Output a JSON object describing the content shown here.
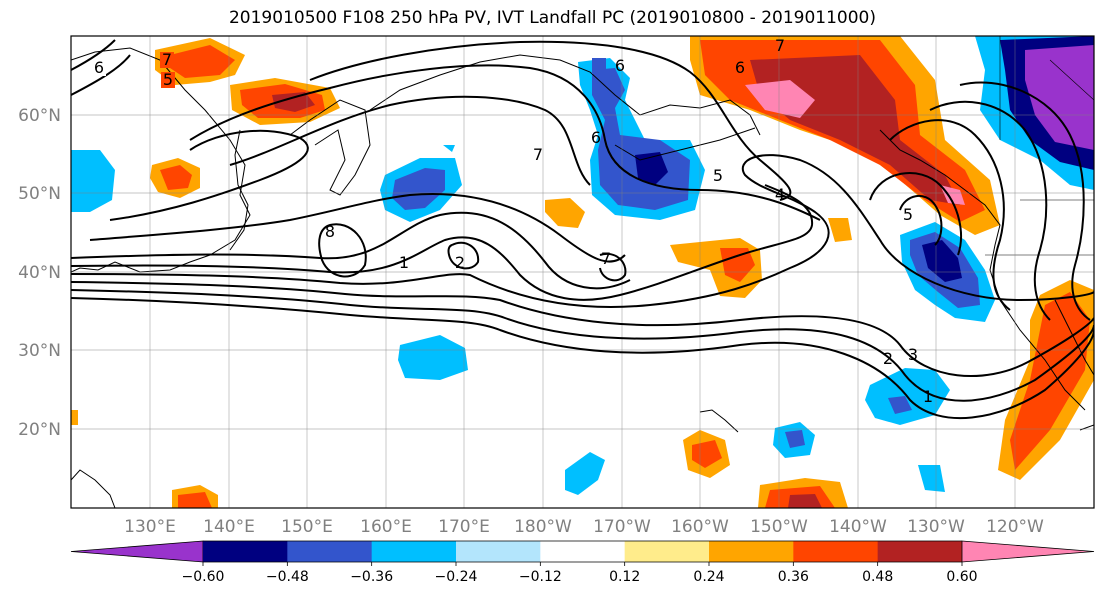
{
  "title": "2019010500 F108 250 hPa PV, IVT Landfall PC (2019010800 - 2019011000)",
  "map": {
    "lat_labels": [
      "60°N",
      "50°N",
      "40°N",
      "30°N",
      "20°N"
    ],
    "lon_labels": [
      "130°E",
      "140°E",
      "150°E",
      "160°E",
      "170°E",
      "180°W",
      "170°W",
      "160°W",
      "150°W",
      "140°W",
      "130°W",
      "120°W"
    ],
    "contour_labels": [
      "6",
      "5",
      "7",
      "6",
      "5",
      "6",
      "7",
      "6",
      "5",
      "4",
      "7",
      "8",
      "2",
      "1",
      "7",
      "2",
      "3",
      "1"
    ]
  },
  "colorbar": {
    "ticks": [
      "−0.60",
      "−0.48",
      "−0.36",
      "−0.24",
      "−0.12",
      "0.12",
      "0.24",
      "0.36",
      "0.48",
      "0.60"
    ],
    "colors": [
      "#9933cc",
      "#000080",
      "#3355cc",
      "#00bfff",
      "#b3e5fc",
      "#ffffff",
      "#ffec8b",
      "#ffa500",
      "#ff4500",
      "#b22222",
      "#ff85b3"
    ]
  }
}
